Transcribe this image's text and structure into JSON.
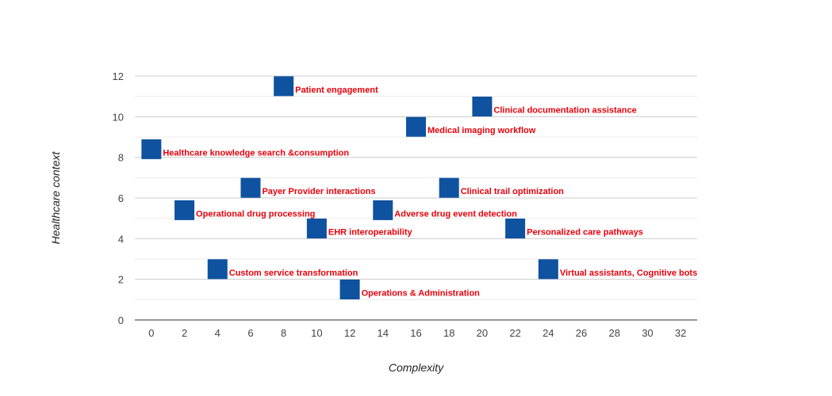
{
  "chart_data": {
    "type": "scatter",
    "title": "",
    "xlabel": "Complexity",
    "ylabel": "Healthcare context",
    "xlim": [
      -1,
      33
    ],
    "ylim": [
      0,
      12
    ],
    "x_ticks": [
      0,
      2,
      4,
      6,
      8,
      10,
      12,
      14,
      16,
      18,
      20,
      22,
      24,
      26,
      28,
      30,
      32
    ],
    "y_ticks": [
      0,
      2,
      4,
      6,
      8,
      10,
      12
    ],
    "grid": true,
    "marker": "square",
    "marker_color": "#0f52a0",
    "label_color": "#e8000b",
    "points": [
      {
        "x": 0,
        "y": 8.4,
        "label": "Healthcare knowledge search &consumption"
      },
      {
        "x": 2,
        "y": 5.4,
        "label": "Operational drug processing"
      },
      {
        "x": 4,
        "y": 2.5,
        "label": "Custom service transformation"
      },
      {
        "x": 6,
        "y": 6.5,
        "label": "Payer Provider interactions"
      },
      {
        "x": 8,
        "y": 11.5,
        "label": "Patient engagement"
      },
      {
        "x": 10,
        "y": 4.5,
        "label": "EHR interoperability"
      },
      {
        "x": 12,
        "y": 1.5,
        "label": "Operations & Administration"
      },
      {
        "x": 14,
        "y": 5.4,
        "label": "Adverse drug event detection"
      },
      {
        "x": 16,
        "y": 9.5,
        "label": "Medical imaging workflow"
      },
      {
        "x": 18,
        "y": 6.5,
        "label": "Clinical trail optimization"
      },
      {
        "x": 20,
        "y": 10.5,
        "label": "Clinical documentation assistance"
      },
      {
        "x": 22,
        "y": 4.5,
        "label": "Personalized care pathways"
      },
      {
        "x": 24,
        "y": 2.5,
        "label": "Virtual assistants, Cognitive bots"
      }
    ]
  }
}
